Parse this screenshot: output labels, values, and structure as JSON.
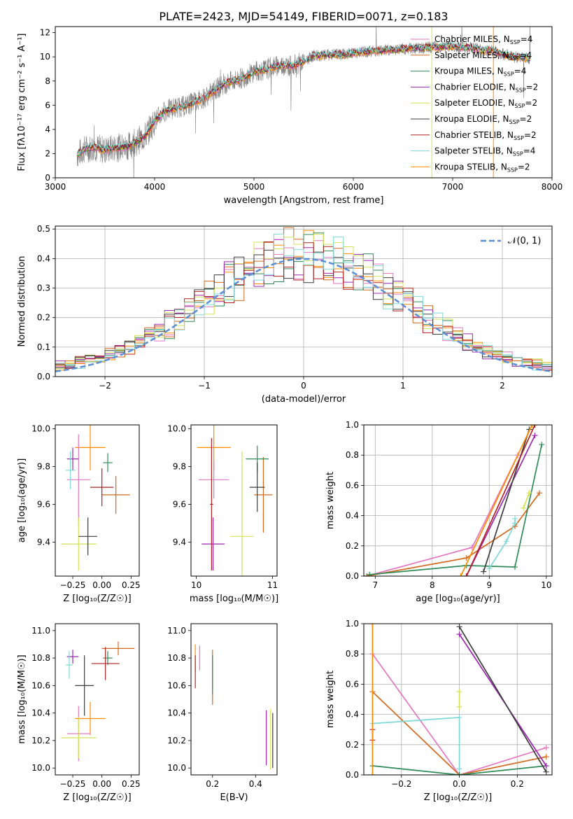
{
  "figure_title": "PLATE=2423, MJD=54149, FIBERID=0071, z=0.183",
  "colors": {
    "spectrum_data": "#808080",
    "models": [
      "#ff8c00",
      "#e377c2",
      "#d2691e",
      "#2e8b57",
      "#9c27b0",
      "#d4e157",
      "#3c3c3c",
      "#b22222",
      "#7fd8d8"
    ],
    "gauss": "#5b8ed6"
  },
  "chart_data": [
    {
      "id": "spectrum",
      "type": "line",
      "xlabel": "wavelength [Angstrom, rest frame]",
      "ylabel": "Flux [fλ10⁻¹⁷ erg cm⁻² s⁻¹ A⁻¹]",
      "xlim": [
        3000,
        8000
      ],
      "ylim": [
        0,
        12.5
      ],
      "xticks": [
        "3000",
        "4000",
        "5000",
        "6000",
        "7000",
        "8000"
      ],
      "yticks": [
        "0",
        "2",
        "4",
        "6",
        "8",
        "10",
        "12"
      ],
      "continuum": {
        "x": [
          3220,
          3300,
          3400,
          3500,
          3600,
          3700,
          3800,
          3900,
          4000,
          4100,
          4200,
          4300,
          4400,
          4500,
          4600,
          4700,
          4800,
          4900,
          5000,
          5100,
          5200,
          5300,
          5400,
          5500,
          5600,
          5700,
          5800,
          5900,
          6000,
          6200,
          6400,
          6600,
          6800,
          7000,
          7200,
          7400,
          7600,
          7780
        ],
        "y": [
          1.9,
          2.4,
          2.5,
          2.3,
          2.5,
          2.5,
          2.9,
          3.4,
          4.7,
          5.5,
          5.8,
          5.9,
          6.3,
          6.6,
          7.2,
          7.8,
          8.0,
          8.3,
          8.8,
          8.9,
          9.2,
          9.3,
          9.3,
          9.6,
          10.1,
          10.1,
          10.2,
          10.2,
          10.3,
          10.5,
          10.6,
          10.7,
          10.8,
          10.9,
          10.7,
          10.5,
          10.0,
          9.9
        ]
      },
      "legend_position": "upper right",
      "legend": [
        {
          "label": "Chabrier MILES, N",
          "sub": "SSP",
          "n": "=4"
        },
        {
          "label": "Salpeter MILES, N",
          "sub": "SSP",
          "n": "=4"
        },
        {
          "label": "Kroupa MILES, N",
          "sub": "SSP",
          "n": "=4"
        },
        {
          "label": "Chabrier ELODIE, N",
          "sub": "SSP",
          "n": "=2"
        },
        {
          "label": "Salpeter ELODIE, N",
          "sub": "SSP",
          "n": "=2"
        },
        {
          "label": "Kroupa ELODIE, N",
          "sub": "SSP",
          "n": "=2"
        },
        {
          "label": "Chabrier STELIB, N",
          "sub": "SSP",
          "n": "=2"
        },
        {
          "label": "Salpeter STELIB, N",
          "sub": "SSP",
          "n": "=4"
        },
        {
          "label": "Kroupa STELIB, N",
          "sub": "SSP",
          "n": "=2"
        }
      ],
      "grid": false
    },
    {
      "id": "residuals",
      "type": "line",
      "xlabel": "(data-model)/error",
      "ylabel": "Normed distribution",
      "xlim": [
        -2.5,
        2.5
      ],
      "ylim": [
        0,
        0.51
      ],
      "xticks": [
        "−2",
        "−1",
        "0",
        "1",
        "2"
      ],
      "yticks": [
        "0.0",
        "0.1",
        "0.2",
        "0.3",
        "0.4",
        "0.5"
      ],
      "legend": "𝒩(0, 1)",
      "legend_position": "upper right",
      "gauss_mu": 0,
      "gauss_sigma": 1,
      "grid": true
    },
    {
      "id": "z_age",
      "type": "scatter",
      "xlabel": "Z [log₁₀(Z/Z☉)]",
      "ylabel": "age  [log₁₀(age/yr)]",
      "xlim": [
        -0.4,
        0.32
      ],
      "ylim": [
        9.22,
        10.02
      ],
      "xticks": [
        "−0.25",
        "0.00",
        "0.25"
      ],
      "yticks": [
        "9.4",
        "9.6",
        "9.8",
        "10.0"
      ],
      "points": [
        {
          "x": -0.1,
          "y": 9.9,
          "xerr": 0.13,
          "yerr": 0.12
        },
        {
          "x": -0.2,
          "y": 9.73,
          "xerr": 0.1,
          "yerr": 0.24
        },
        {
          "x": 0.12,
          "y": 9.65,
          "xerr": 0.12,
          "yerr": 0.1
        },
        {
          "x": 0.05,
          "y": 9.82,
          "xerr": 0.04,
          "yerr": 0.05
        },
        {
          "x": -0.25,
          "y": 9.84,
          "xerr": 0.05,
          "yerr": 0.06
        },
        {
          "x": -0.2,
          "y": 9.39,
          "xerr": 0.15,
          "yerr": 0.14
        },
        {
          "x": -0.12,
          "y": 9.43,
          "xerr": 0.08,
          "yerr": 0.1
        },
        {
          "x": 0.0,
          "y": 9.69,
          "xerr": 0.1,
          "yerr": 0.1
        },
        {
          "x": -0.27,
          "y": 9.78,
          "xerr": 0.04,
          "yerr": 0.1
        }
      ],
      "grid": false
    },
    {
      "id": "mass_age",
      "type": "scatter",
      "xlabel": "mass [log₁₀(M/M☉)]",
      "ylabel": "",
      "xlim": [
        9.93,
        11.06
      ],
      "ylim": [
        9.22,
        10.02
      ],
      "xticks": [
        "10",
        "11"
      ],
      "yticks": [
        "9.4",
        "9.6",
        "9.8",
        "10.0"
      ],
      "points": [
        {
          "x": 10.23,
          "y": 9.9,
          "xerr": 0.22,
          "yerr": 0.12
        },
        {
          "x": 10.23,
          "y": 9.73,
          "xerr": 0.2,
          "yerr": 0.1
        },
        {
          "x": 10.88,
          "y": 9.65,
          "xerr": 0.12,
          "yerr": 0.2
        },
        {
          "x": 10.8,
          "y": 9.84,
          "xerr": 0.15,
          "yerr": 0.07
        },
        {
          "x": 10.22,
          "y": 9.39,
          "xerr": 0.15,
          "yerr": 0.14
        },
        {
          "x": 10.6,
          "y": 9.43,
          "xerr": 0.15,
          "yerr": 0.45
        },
        {
          "x": 10.8,
          "y": 9.69,
          "xerr": 0.1,
          "yerr": 0.13
        },
        {
          "x": 10.2,
          "y": 9.6,
          "xerr": 0.02,
          "yerr": 0.35
        }
      ],
      "grid": false
    },
    {
      "id": "age_weight",
      "type": "line",
      "xlabel": "age  [log₁₀(age/yr)]",
      "ylabel": "mass weight",
      "xlim": [
        6.8,
        10.1
      ],
      "ylim": [
        0,
        1
      ],
      "xticks": [
        "7",
        "8",
        "9",
        "10"
      ],
      "yticks": [
        "0.0",
        "0.2",
        "0.4",
        "0.6",
        "0.8",
        "1.0"
      ],
      "series": [
        {
          "x": [
            6.85,
            8.7,
            9.5
          ],
          "y": [
            0.0,
            0.19,
            0.8
          ]
        },
        {
          "x": [
            6.85,
            8.6,
            9.45,
            9.88
          ],
          "y": [
            0.0,
            0.12,
            0.33,
            0.55
          ]
        },
        {
          "x": [
            6.9,
            8.6,
            9.45,
            9.92
          ],
          "y": [
            0.01,
            0.07,
            0.06,
            0.87
          ]
        },
        {
          "x": [
            8.6,
            9.8
          ],
          "y": [
            0.0,
            0.93
          ]
        },
        {
          "x": [
            9.6,
            9.7
          ],
          "y": [
            0.45,
            0.55
          ]
        },
        {
          "x": [
            8.9,
            9.7
          ],
          "y": [
            0.03,
            0.97
          ]
        },
        {
          "x": [
            8.6,
            9.8
          ],
          "y": [
            0.0,
            1.0
          ]
        },
        {
          "x": [
            9.0,
            9.3,
            9.45,
            9.45
          ],
          "y": [
            0.05,
            0.23,
            0.35,
            0.38
          ]
        },
        {
          "x": [
            8.5,
            9.75
          ],
          "y": [
            0.0,
            1.0
          ]
        }
      ],
      "grid": true
    },
    {
      "id": "z_mass",
      "type": "scatter",
      "xlabel": "Z [log₁₀(Z/Z☉)]",
      "ylabel": "mass [log₁₀(M/M☉)]",
      "xlim": [
        -0.4,
        0.32
      ],
      "ylim": [
        9.95,
        11.05
      ],
      "xticks": [
        "−0.25",
        "0.00",
        "0.25"
      ],
      "yticks": [
        "10.0",
        "10.2",
        "10.4",
        "10.6",
        "10.8",
        "11.0"
      ],
      "points": [
        {
          "x": -0.1,
          "y": 10.36,
          "xerr": 0.13,
          "yerr": 0.12
        },
        {
          "x": -0.2,
          "y": 10.25,
          "xerr": 0.1,
          "yerr": 0.2
        },
        {
          "x": 0.14,
          "y": 10.87,
          "xerr": 0.14,
          "yerr": 0.05
        },
        {
          "x": 0.05,
          "y": 10.8,
          "xerr": 0.04,
          "yerr": 0.05
        },
        {
          "x": -0.25,
          "y": 10.81,
          "xerr": 0.05,
          "yerr": 0.05
        },
        {
          "x": -0.2,
          "y": 10.22,
          "xerr": 0.15,
          "yerr": 0.15
        },
        {
          "x": -0.15,
          "y": 10.6,
          "xerr": 0.08,
          "yerr": 0.22
        },
        {
          "x": 0.03,
          "y": 10.76,
          "xerr": 0.12,
          "yerr": 0.12
        },
        {
          "x": -0.28,
          "y": 10.75,
          "xerr": 0.03,
          "yerr": 0.1
        }
      ],
      "grid": false
    },
    {
      "id": "ebv_mass",
      "type": "scatter",
      "xlabel": "E(B-V)",
      "ylabel": "",
      "xlim": [
        0.1,
        0.5
      ],
      "ylim": [
        9.95,
        11.05
      ],
      "xticks": [
        "0.2",
        "0.4"
      ],
      "yticks": [
        "10.0",
        "10.2",
        "10.4",
        "10.6",
        "10.8",
        "11.0"
      ],
      "points": [
        {
          "x": 0.12,
          "y": 10.8,
          "xerr": 0.0,
          "yerr": 0.1
        },
        {
          "x": 0.14,
          "y": 10.8,
          "xerr": 0.0,
          "yerr": 0.09
        },
        {
          "x": 0.2,
          "y": 10.66,
          "xerr": 0.0,
          "yerr": 0.2
        },
        {
          "x": 0.2,
          "y": 10.68,
          "xerr": 0.0,
          "yerr": 0.14
        },
        {
          "x": 0.45,
          "y": 10.22,
          "xerr": 0.0,
          "yerr": 0.2
        },
        {
          "x": 0.47,
          "y": 10.21,
          "xerr": 0.0,
          "yerr": 0.22
        },
        {
          "x": 0.48,
          "y": 10.2,
          "xerr": 0.0,
          "yerr": 0.2
        },
        {
          "x": 0.12,
          "y": 10.7,
          "xerr": 0.0,
          "yerr": 0.12
        }
      ],
      "grid": false
    },
    {
      "id": "z_weight",
      "type": "line",
      "xlabel": "Z [log₁₀(Z/Z☉)]",
      "ylabel": "mass weight",
      "xlim": [
        -0.33,
        0.32
      ],
      "ylim": [
        0,
        1
      ],
      "xticks": [
        "−0.2",
        "0.0",
        "0.2"
      ],
      "yticks": [
        "0.0",
        "0.2",
        "0.4",
        "0.6",
        "0.8",
        "1.0"
      ],
      "series": [
        {
          "x": [
            -0.3,
            0.0,
            0.3
          ],
          "y": [
            0.8,
            0.0,
            0.18
          ]
        },
        {
          "x": [
            -0.3,
            0.0,
            0.3
          ],
          "y": [
            0.55,
            0.0,
            0.12
          ]
        },
        {
          "x": [
            -0.3,
            0.0,
            0.3
          ],
          "y": [
            0.06,
            0.0,
            0.06
          ]
        },
        {
          "x": [
            0.0,
            0.3
          ],
          "y": [
            0.93,
            0.06
          ]
        },
        {
          "x": [
            0.0,
            0.0
          ],
          "y": [
            0.45,
            0.55
          ]
        },
        {
          "x": [
            0.0,
            0.3
          ],
          "y": [
            0.98,
            0.02
          ]
        },
        {
          "x": [
            -0.3,
            -0.3
          ],
          "y": [
            0.23,
            0.3
          ]
        },
        {
          "x": [
            -0.3,
            0.0,
            0.0
          ],
          "y": [
            0.34,
            0.38,
            0.04
          ]
        },
        {
          "x": [
            -0.3,
            -0.3
          ],
          "y": [
            0.0,
            1.0
          ]
        }
      ],
      "grid": true
    }
  ]
}
